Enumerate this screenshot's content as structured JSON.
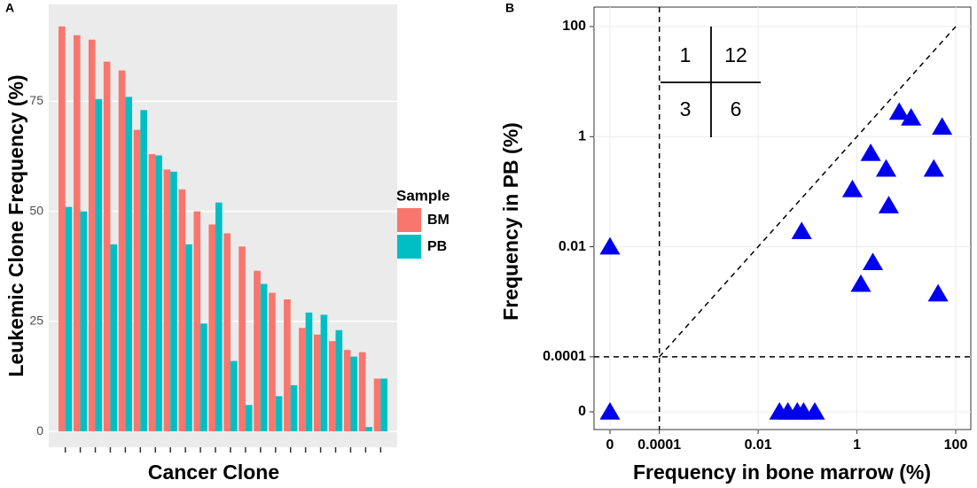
{
  "chart_data": [
    {
      "type": "bar",
      "panel_label": "A",
      "y_label": "Leukemic Clone Frequency (%)",
      "x_label": "Cancer Clone",
      "categories": [
        null,
        null,
        null,
        null,
        null,
        null,
        null,
        null,
        null,
        null,
        null,
        null,
        null,
        null,
        null,
        null,
        null,
        null,
        null,
        null,
        null,
        null
      ],
      "series": [
        {
          "name": "BM",
          "color": "#f8766d",
          "values": [
            92,
            90,
            89,
            84,
            82,
            68.5,
            63,
            59.5,
            55,
            50,
            47,
            45,
            42,
            36.5,
            31.5,
            30,
            23.5,
            22,
            20.5,
            18.5,
            18,
            12
          ]
        },
        {
          "name": "PB",
          "color": "#00bfc4",
          "values": [
            51,
            50,
            75.5,
            42.5,
            76,
            73,
            62.7,
            59,
            42.5,
            24.5,
            52,
            16,
            6,
            33.5,
            8,
            10.5,
            27,
            26.5,
            23,
            17,
            1,
            12
          ]
        }
      ],
      "legend_title": "Sample",
      "ylim": [
        -3.6,
        97
      ],
      "yticks": [
        0,
        25,
        50,
        75
      ],
      "grid": true
    },
    {
      "type": "scatter",
      "panel_label": "B",
      "y_label": "Frequency in PB (%)",
      "x_label": "Frequency in bone marrow (%)",
      "log": true,
      "grid": true,
      "color": "#0000ee",
      "x": [
        0,
        0,
        0.027,
        0.04,
        0.062,
        0.083,
        0.14,
        0.076,
        0.81,
        1.9,
        3.9,
        4.4,
        2.1,
        1.2,
        7.2,
        12.5,
        53,
        36,
        44
      ],
      "y": [
        0.01,
        0,
        0,
        0,
        0,
        0,
        0,
        0.019,
        0.11,
        0.5,
        0.26,
        0.056,
        0.0052,
        0.0021,
        2.8,
        2.2,
        1.5,
        0.26,
        0.0014
      ],
      "xlim": [
        0,
        100
      ],
      "ylim": [
        0,
        100
      ],
      "xticks": [
        0,
        0.0001,
        0.01,
        1,
        100
      ],
      "yticks": [
        0,
        0.0001,
        0.01,
        1,
        100
      ],
      "annotations": [
        "1",
        "12",
        "3",
        "6"
      ]
    }
  ]
}
